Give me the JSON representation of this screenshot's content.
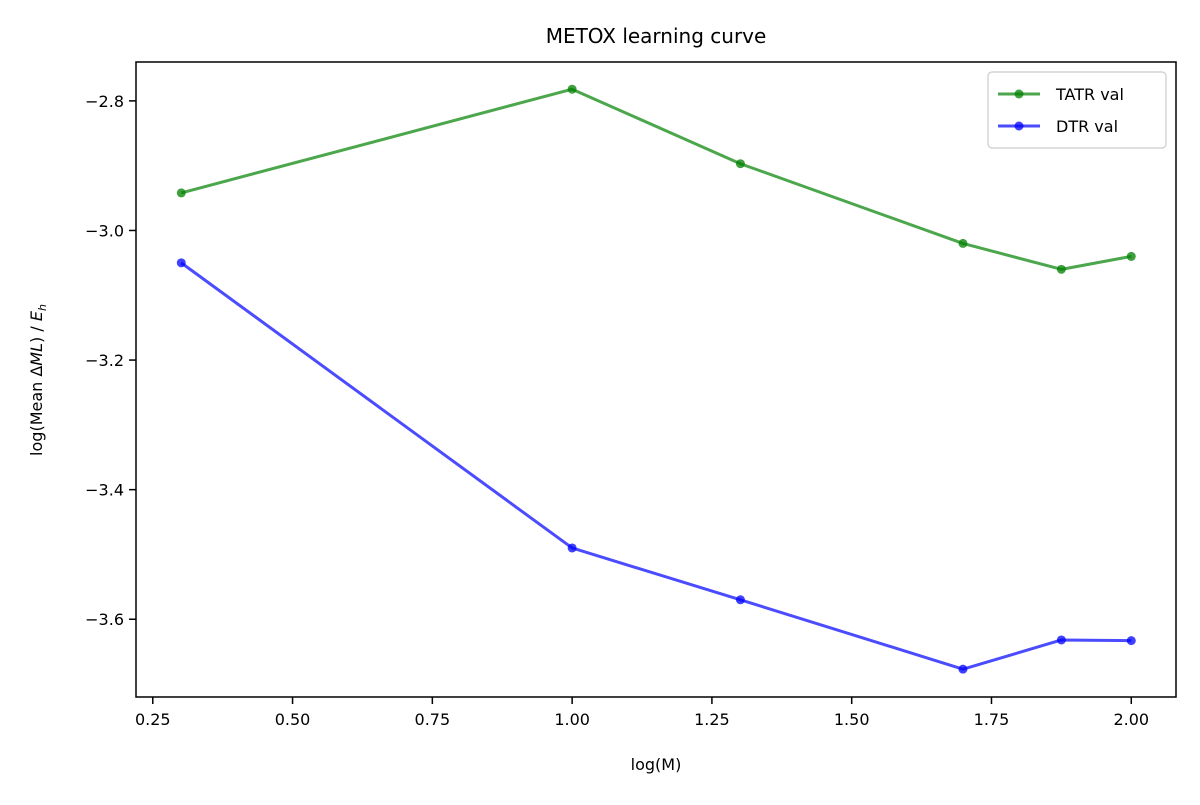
{
  "chart_data": {
    "type": "line",
    "title": "METOX learning curve",
    "xlabel": "log(M)",
    "ylabel": {
      "prefix": "log(Mean ",
      "delta": "Δ",
      "ml": "ML",
      "suffix": ") / ",
      "e": "E",
      "sub": "h"
    },
    "xlim": [
      0.22,
      2.08
    ],
    "ylim": [
      -3.72,
      -2.74
    ],
    "x_ticks": [
      0.25,
      0.5,
      0.75,
      1.0,
      1.25,
      1.5,
      1.75,
      2.0
    ],
    "x_tick_labels": [
      "0.25",
      "0.50",
      "0.75",
      "1.00",
      "1.25",
      "1.50",
      "1.75",
      "2.00"
    ],
    "y_ticks": [
      -2.8,
      -3.0,
      -3.2,
      -3.4,
      -3.6
    ],
    "y_tick_labels": [
      "−2.8",
      "−3.0",
      "−3.2",
      "−3.4",
      "−3.6"
    ],
    "grid": false,
    "legend_position": "top-right",
    "series": [
      {
        "name": "TATR val",
        "color": "#008000",
        "x": [
          0.301,
          1.0,
          1.301,
          1.699,
          1.875,
          2.0
        ],
        "y": [
          -2.942,
          -2.782,
          -2.897,
          -3.02,
          -3.06,
          -3.04
        ]
      },
      {
        "name": "DTR val",
        "color": "#0000ff",
        "x": [
          0.301,
          1.0,
          1.301,
          1.699,
          1.875,
          2.0
        ],
        "y": [
          -3.05,
          -3.49,
          -3.57,
          -3.677,
          -3.632,
          -3.633
        ]
      }
    ]
  }
}
